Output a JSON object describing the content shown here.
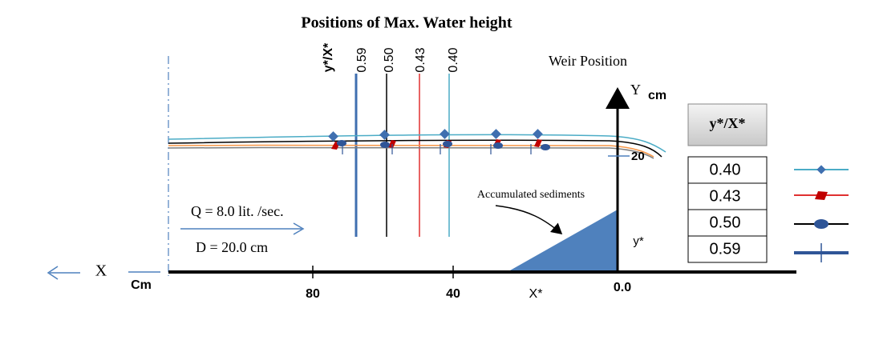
{
  "title": "Positions of Max. Water height",
  "vertical_lines": {
    "header": "y*/X*",
    "labels": [
      "0.59",
      "0.50",
      "0.43",
      "0.40"
    ]
  },
  "weir_label": "Weir Position",
  "y_axis": {
    "label": "Y",
    "unit": "cm",
    "tick": "20"
  },
  "x_axis": {
    "label": "X",
    "unit": "Cm",
    "ticks": [
      "80",
      "40",
      "0.0"
    ],
    "name": "X*"
  },
  "y_star": "y*",
  "sediments_label": "Accumulated sediments",
  "flow": "Q = 8.0 lit. /sec.",
  "depth": "D = 20.0 cm",
  "legend": {
    "header": "y*/X*",
    "entries": [
      "0.40",
      "0.43",
      "0.50",
      "0.59"
    ]
  }
}
